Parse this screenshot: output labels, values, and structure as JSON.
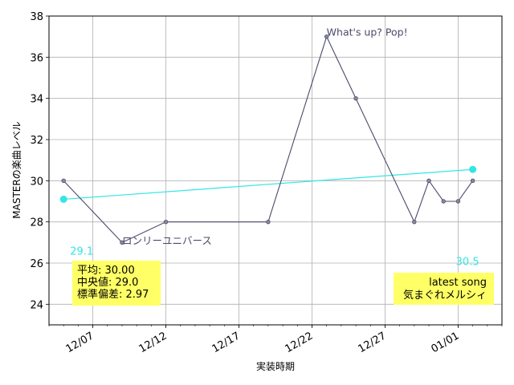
{
  "chart_data": {
    "type": "line",
    "xlabel": "実装時期",
    "ylabel": "MASTERの楽曲レベル",
    "x_tick_labels": [
      "12/07",
      "12/12",
      "12/17",
      "12/22",
      "12/27",
      "01/01"
    ],
    "xlim": [
      "2023-12-04",
      "2024-01-04"
    ],
    "ylim": [
      23,
      38
    ],
    "y_ticks": [
      24,
      26,
      28,
      30,
      32,
      34,
      36,
      38
    ],
    "grid": true,
    "series": [
      {
        "color": "#4a4a6a",
        "points": [
          {
            "x": "2023-12-05",
            "y": 30
          },
          {
            "x": "2023-12-09",
            "y": 27
          },
          {
            "x": "2023-12-12",
            "y": 28
          },
          {
            "x": "2023-12-19",
            "y": 28
          },
          {
            "x": "2023-12-23",
            "y": 37
          },
          {
            "x": "2023-12-25",
            "y": 34
          },
          {
            "x": "2023-12-29",
            "y": 28
          },
          {
            "x": "2023-12-30",
            "y": 30
          },
          {
            "x": "2023-12-31",
            "y": 29
          },
          {
            "x": "2024-01-01",
            "y": 29
          },
          {
            "x": "2024-01-02",
            "y": 30
          }
        ]
      },
      {
        "color": "#33e6e6",
        "points": [
          {
            "x": "2023-12-05",
            "y": 29.1
          },
          {
            "x": "2024-01-02",
            "y": 30.55
          }
        ]
      }
    ],
    "annotations": {
      "max_song": {
        "text": "What's up? Pop!",
        "x": "2023-12-23",
        "y": 37
      },
      "min_song": {
        "text": "ロンリーユニバース",
        "x": "2023-12-09",
        "y": 27
      },
      "trend_start": {
        "text": "29.1"
      },
      "trend_end": {
        "text": "30.5"
      }
    },
    "stats_box": {
      "lines": [
        "平均: 30.00",
        "中央値: 29.0",
        "標準偏差:  2.97"
      ],
      "background": "#ffff66"
    },
    "latest_box": {
      "lines": [
        "latest song",
        "気まぐれメルシィ"
      ],
      "background": "#ffff66"
    }
  }
}
